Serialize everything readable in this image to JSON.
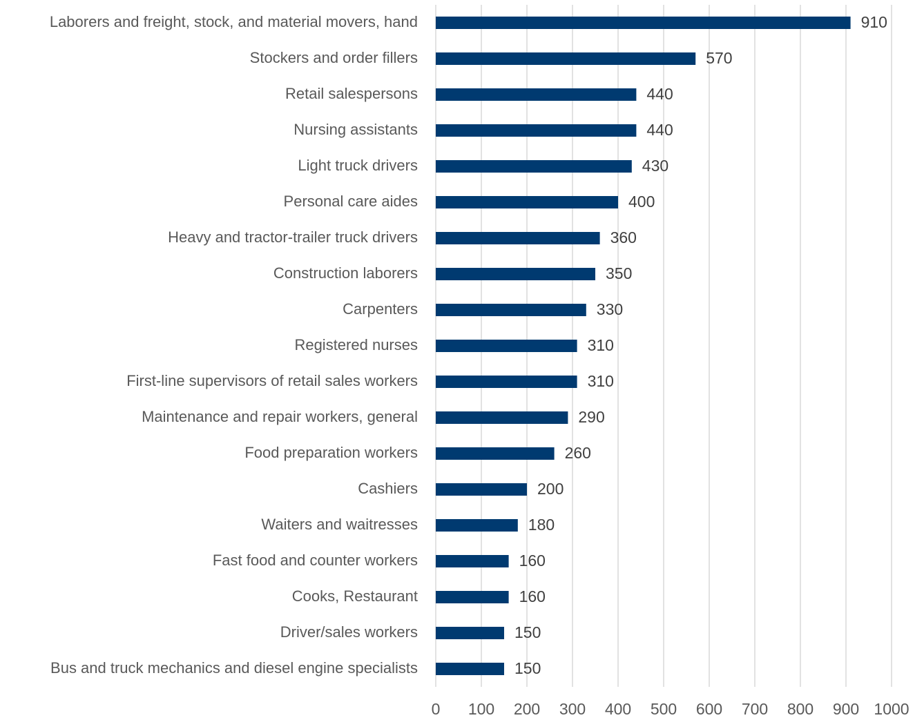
{
  "chart_data": {
    "type": "bar",
    "orientation": "horizontal",
    "categories": [
      "Laborers and freight, stock, and material movers, hand",
      "Stockers and order fillers",
      "Retail salespersons",
      "Nursing assistants",
      "Light truck drivers",
      "Personal care aides",
      "Heavy and tractor-trailer truck drivers",
      "Construction laborers",
      "Carpenters",
      "Registered nurses",
      "First-line supervisors of retail sales workers",
      "Maintenance and repair workers, general",
      "Food preparation workers",
      "Cashiers",
      "Waiters and waitresses",
      "Fast food and counter workers",
      "Cooks, Restaurant",
      "Driver/sales workers",
      "Bus and truck mechanics and diesel engine specialists"
    ],
    "values": [
      910,
      570,
      440,
      440,
      430,
      400,
      360,
      350,
      330,
      310,
      310,
      290,
      260,
      200,
      180,
      160,
      160,
      150,
      150
    ],
    "color": "#003a70",
    "xlim": [
      0,
      1000
    ],
    "xticks": [
      0,
      100,
      200,
      300,
      400,
      500,
      600,
      700,
      800,
      900,
      1000
    ],
    "grid": true
  }
}
